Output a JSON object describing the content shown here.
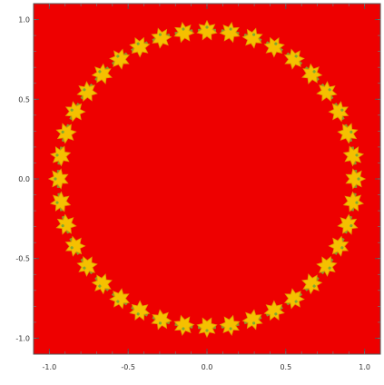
{
  "chart_data": {
    "type": "heatmap",
    "title": "",
    "xlabel": "",
    "ylabel": "",
    "xlim": [
      -1.1,
      1.1
    ],
    "ylim": [
      -1.1,
      1.1
    ],
    "x_ticks": [
      -1.0,
      -0.5,
      0.0,
      0.5,
      1.0
    ],
    "x_tick_labels": [
      "-1.0",
      "-0.5",
      "0.0",
      "0.5",
      "1.0"
    ],
    "y_ticks": [
      1.0,
      0.5,
      0.0,
      -0.5,
      -1.0
    ],
    "y_tick_labels": [
      "1.0",
      "0.5",
      "0.0",
      "-0.5",
      "-1.0"
    ],
    "grid": false,
    "legend": "none",
    "background_color": "#ee0000",
    "ring": {
      "radius": 0.94,
      "lobe_count": 40,
      "fill_color": "#f5c000",
      "edge_color": "#7fa832"
    }
  }
}
